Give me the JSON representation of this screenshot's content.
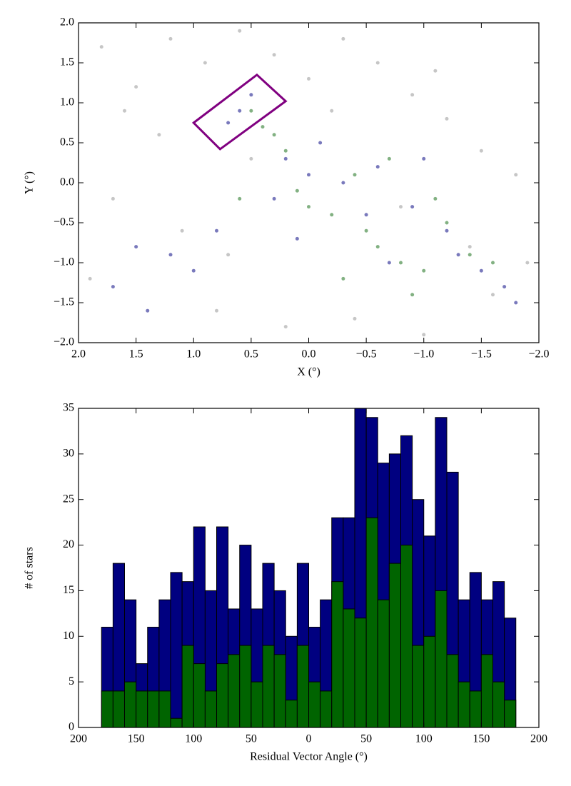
{
  "chart_data": [
    {
      "type": "scatter",
      "x_label": "X (°)",
      "y_label": "Y (°)",
      "xlim": [
        2.0,
        -2.0
      ],
      "ylim": [
        -2.0,
        2.0
      ],
      "xticks": [
        {
          "value": 2.0,
          "label": "2.0"
        },
        {
          "value": 1.5,
          "label": "1.5"
        },
        {
          "value": 1.0,
          "label": "1.0"
        },
        {
          "value": 0.5,
          "label": "0.5"
        },
        {
          "value": 0.0,
          "label": "0.0"
        },
        {
          "value": -0.5,
          "label": "−0.5"
        },
        {
          "value": -1.0,
          "label": "−1.0"
        },
        {
          "value": -1.5,
          "label": "−1.5"
        },
        {
          "value": -2.0,
          "label": "−2.0"
        }
      ],
      "yticks": [
        {
          "value": -2.0,
          "label": "−2.0"
        },
        {
          "value": -1.5,
          "label": "−1.5"
        },
        {
          "value": -1.0,
          "label": "−1.0"
        },
        {
          "value": -0.5,
          "label": "−0.5"
        },
        {
          "value": 0.0,
          "label": "0.0"
        },
        {
          "value": 0.5,
          "label": "0.5"
        },
        {
          "value": 1.0,
          "label": "1.0"
        },
        {
          "value": 1.5,
          "label": "1.5"
        },
        {
          "value": 2.0,
          "label": "2.0"
        }
      ],
      "series": [
        {
          "color": "#a0a0a0",
          "x": [
            1.8,
            1.5,
            1.2,
            0.9,
            0.6,
            0.3,
            0.0,
            -0.3,
            -0.6,
            -0.9,
            -1.2,
            -1.5,
            -1.8,
            1.7,
            1.3,
            0.8,
            0.2,
            -0.4,
            -1.0,
            -1.6,
            1.9,
            1.1,
            0.5,
            -0.2,
            -0.8,
            -1.4,
            -1.9,
            1.6,
            0.7,
            -1.1
          ],
          "y": [
            1.7,
            1.2,
            1.8,
            1.5,
            1.9,
            1.6,
            1.3,
            1.8,
            1.5,
            1.1,
            0.8,
            0.4,
            0.1,
            -0.2,
            0.6,
            -1.6,
            -1.8,
            -1.7,
            -1.9,
            -1.4,
            -1.2,
            -0.6,
            0.3,
            0.9,
            -0.3,
            -0.8,
            -1.0,
            0.9,
            -0.9,
            1.4
          ]
        },
        {
          "color": "#1f1f8f",
          "x": [
            0.6,
            0.5,
            0.7,
            0.2,
            0.0,
            -0.3,
            -0.6,
            -0.9,
            -1.2,
            -1.5,
            -1.7,
            0.3,
            -0.1,
            -0.5,
            1.2,
            1.5,
            1.0,
            1.7,
            -1.8,
            -1.3,
            0.8,
            0.1,
            -0.7,
            1.4,
            -1.0
          ],
          "y": [
            0.9,
            1.1,
            0.75,
            0.3,
            0.1,
            0.0,
            0.2,
            -0.3,
            -0.6,
            -1.1,
            -1.3,
            -0.2,
            0.5,
            -0.4,
            -0.9,
            -0.8,
            -1.1,
            -1.3,
            -1.5,
            -0.9,
            -0.6,
            -0.7,
            -1.0,
            -1.6,
            0.3
          ]
        },
        {
          "color": "#2e7d2e",
          "x": [
            0.5,
            0.3,
            0.1,
            -0.2,
            -0.5,
            -0.8,
            -1.0,
            -1.2,
            -0.6,
            0.0,
            -0.4,
            -0.9,
            0.6,
            -1.4,
            -0.3,
            0.2,
            -0.7,
            -1.1,
            0.4,
            -1.6
          ],
          "y": [
            0.9,
            0.6,
            -0.1,
            -0.4,
            -0.6,
            -1.0,
            -1.1,
            -0.5,
            -0.8,
            -0.3,
            0.1,
            -1.4,
            -0.2,
            -0.9,
            -1.2,
            0.4,
            0.3,
            -0.2,
            0.7,
            -1.0
          ]
        }
      ],
      "region": {
        "color": "#800080",
        "x": [
          1.0,
          0.45,
          0.2,
          0.77
        ],
        "y": [
          0.75,
          1.35,
          1.02,
          0.42
        ]
      }
    },
    {
      "type": "histogram",
      "x_label": "Residual Vector Angle (°)",
      "y_label": "# of stars",
      "xlim": [
        -200,
        200
      ],
      "ylim": [
        0,
        35
      ],
      "xticks": [
        {
          "value": -200,
          "label": "200"
        },
        {
          "value": -150,
          "label": "150"
        },
        {
          "value": -100,
          "label": "100"
        },
        {
          "value": -50,
          "label": "50"
        },
        0,
        50,
        100,
        150,
        200
      ],
      "yticks": [
        0,
        5,
        10,
        15,
        20,
        25,
        30,
        35
      ],
      "bins": [
        -180,
        -170,
        -160,
        -150,
        -140,
        -130,
        -120,
        -110,
        -100,
        -90,
        -80,
        -70,
        -60,
        -50,
        -40,
        -30,
        -20,
        -10,
        0,
        10,
        20,
        30,
        40,
        50,
        60,
        70,
        80,
        90,
        100,
        110,
        120,
        130,
        140,
        150,
        160,
        170,
        180
      ],
      "series": [
        {
          "color": "#000080",
          "values": [
            11,
            18,
            14,
            7,
            11,
            14,
            17,
            16,
            22,
            15,
            22,
            13,
            20,
            13,
            18,
            15,
            10,
            18,
            11,
            14,
            23,
            23,
            35,
            34,
            29,
            30,
            32,
            25,
            21,
            34,
            28,
            14,
            17,
            14,
            16,
            12
          ]
        },
        {
          "color": "#006400",
          "values": [
            4,
            4,
            5,
            4,
            4,
            4,
            1,
            9,
            7,
            4,
            7,
            8,
            9,
            5,
            9,
            8,
            3,
            9,
            5,
            4,
            16,
            13,
            12,
            23,
            14,
            18,
            20,
            9,
            10,
            15,
            8,
            5,
            4,
            8,
            5,
            3
          ]
        }
      ]
    }
  ]
}
